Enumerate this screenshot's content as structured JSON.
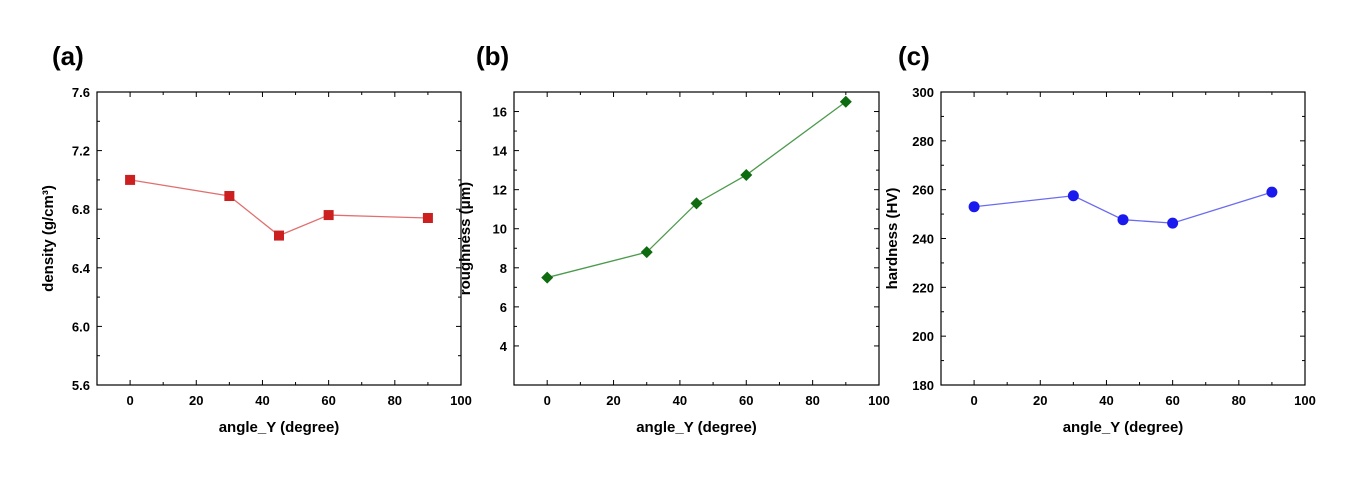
{
  "chart_data": [
    {
      "type": "line",
      "panel_label": "(a)",
      "xlabel": "angle_Y (degree)",
      "ylabel": "density (g/cm³)",
      "xlim": [
        -10,
        100
      ],
      "ylim": [
        5.6,
        7.6
      ],
      "xticks": [
        "0",
        "20",
        "40",
        "60",
        "80",
        "100"
      ],
      "yticks": [
        "5.6",
        "6.0",
        "6.4",
        "6.8",
        "7.2",
        "7.6"
      ],
      "marker": "square",
      "color": "#cc1f1f",
      "line_color": "#e07070",
      "x": [
        0,
        30,
        45,
        60,
        90
      ],
      "y": [
        7.0,
        6.89,
        6.62,
        6.76,
        6.74
      ]
    },
    {
      "type": "line",
      "panel_label": "(b)",
      "xlabel": "angle_Y (degree)",
      "ylabel": "roughness (μm)",
      "xlim": [
        -10,
        100
      ],
      "ylim": [
        2,
        17
      ],
      "xticks": [
        "0",
        "20",
        "40",
        "60",
        "80",
        "100"
      ],
      "yticks": [
        "4",
        "6",
        "8",
        "10",
        "12",
        "14",
        "16"
      ],
      "marker": "diamond",
      "color": "#0f6b0f",
      "line_color": "#4c9a4c",
      "x": [
        0,
        30,
        45,
        60,
        90
      ],
      "y": [
        7.5,
        8.8,
        11.3,
        12.75,
        16.5
      ]
    },
    {
      "type": "line",
      "panel_label": "(c)",
      "xlabel": "angle_Y (degree)",
      "ylabel": "hardness (HV)",
      "xlim": [
        -10,
        100
      ],
      "ylim": [
        180,
        300
      ],
      "xticks": [
        "0",
        "20",
        "40",
        "60",
        "80",
        "100"
      ],
      "yticks": [
        "180",
        "200",
        "220",
        "240",
        "260",
        "280",
        "300"
      ],
      "marker": "circle",
      "color": "#1a1aee",
      "line_color": "#6b6bf0",
      "x": [
        0,
        30,
        45,
        60,
        90
      ],
      "y": [
        253,
        257.5,
        247.7,
        246.3,
        259
      ]
    }
  ]
}
